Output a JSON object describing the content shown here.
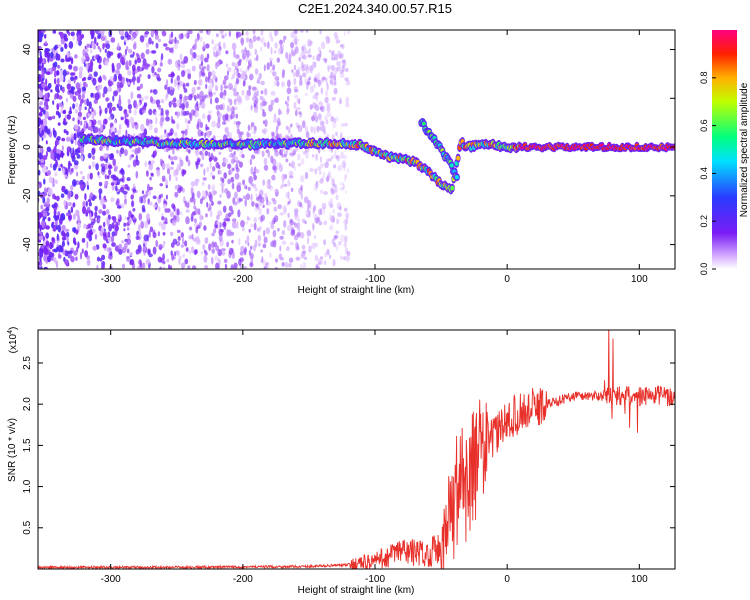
{
  "title": "C2E1.2024.340.00.57.R15",
  "colors": {
    "snr_line": "#e8302a",
    "spectrogram_low": "#7a1cf5",
    "spectrogram_high": "#ff0000"
  },
  "chart_data": [
    {
      "type": "heatmap",
      "xlabel": "Height of straight line (km)",
      "ylabel": "Frequency (Hz)",
      "xlim": [
        -355,
        127
      ],
      "ylim": [
        -50,
        48
      ],
      "xticks": [
        "-300",
        "-200",
        "-100",
        "0",
        "100"
      ],
      "yticks": [
        "-40",
        "-20",
        "0",
        "20",
        "40"
      ],
      "colorbar": {
        "label": "Normalized spectral amplitude",
        "range": [
          0,
          1
        ],
        "ticks": [
          "0.0",
          "0.2",
          "0.4",
          "0.6",
          "0.8"
        ],
        "colormap": "rainbow (violet to red)"
      },
      "signal_trace": {
        "x": [
          -320,
          -300,
          -250,
          -200,
          -150,
          -130,
          -110,
          -100,
          -90,
          -80,
          -70,
          -60,
          -50,
          -42,
          -35,
          -30,
          -20,
          -10,
          0,
          10,
          50,
          100,
          127
        ],
        "y": [
          3,
          2.5,
          1.5,
          1,
          1.5,
          1.5,
          1,
          -2,
          -4,
          -5,
          -6,
          -10,
          -15,
          -18,
          2,
          0,
          1,
          1,
          0,
          0,
          0,
          0,
          0
        ]
      },
      "secondary_trace": {
        "x": [
          -65,
          -55,
          -45,
          -38
        ],
        "y": [
          10,
          3,
          -5,
          -12
        ]
      },
      "noise_region": [
        -355,
        -130
      ]
    },
    {
      "type": "line",
      "xlabel": "Height of straight line (km)",
      "ylabel": "SNR (10 * v/v)",
      "y_multiplier": "(x10^4)",
      "xlim": [
        -355,
        127
      ],
      "ylim": [
        0,
        2.9
      ],
      "xticks": [
        "-300",
        "-200",
        "-100",
        "0",
        "100"
      ],
      "yticks": [
        "0.5",
        "1.0",
        "1.5",
        "2.0",
        "2.5"
      ],
      "series": [
        {
          "x": [
            -355,
            -250,
            -150,
            -120,
            -100,
            -90,
            -80,
            -70,
            -60,
            -50,
            -45,
            -40,
            -35,
            -30,
            -25,
            -20,
            -15,
            -10,
            0,
            10,
            20,
            30,
            40,
            50,
            60,
            70,
            80,
            90,
            100,
            110,
            120,
            127
          ],
          "y": [
            0.02,
            0.02,
            0.03,
            0.05,
            0.1,
            0.15,
            0.22,
            0.2,
            0.18,
            0.3,
            0.5,
            0.7,
            0.9,
            1.0,
            1.3,
            1.5,
            1.55,
            1.6,
            1.8,
            1.9,
            1.95,
            2.0,
            2.05,
            2.1,
            2.1,
            2.1,
            2.1,
            2.1,
            2.1,
            2.1,
            2.1,
            2.08
          ]
        }
      ]
    }
  ]
}
